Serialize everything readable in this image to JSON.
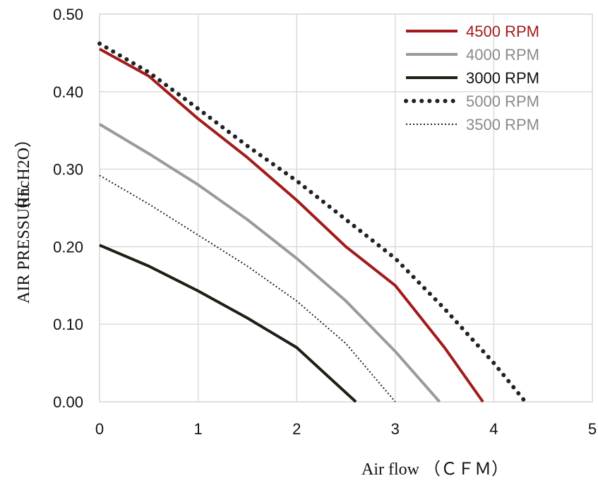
{
  "chart_data": {
    "type": "line",
    "xlabel": "Air flow  （ＣＦＭ）",
    "ylabel_main": "AIR PRESSURE",
    "ylabel_unit": "（IncH2O）",
    "xlim": [
      0,
      5
    ],
    "ylim": [
      0,
      0.5
    ],
    "x_ticks": [
      "0",
      "1",
      "2",
      "3",
      "4",
      "5"
    ],
    "y_ticks": [
      "0.00",
      "0.10",
      "0.20",
      "0.30",
      "0.40",
      "0.50"
    ],
    "grid": true,
    "legend_position": "top-right",
    "series": [
      {
        "name": "4500 RPM",
        "color": "#a31a1a",
        "style": "solid-thick",
        "points": [
          [
            0,
            0.455
          ],
          [
            0.5,
            0.42
          ],
          [
            1,
            0.365
          ],
          [
            1.5,
            0.315
          ],
          [
            2,
            0.26
          ],
          [
            2.5,
            0.2
          ],
          [
            3,
            0.15
          ],
          [
            3.5,
            0.07
          ],
          [
            3.89,
            0.0
          ]
        ]
      },
      {
        "name": "4000 RPM",
        "color": "#9a9a9a",
        "style": "solid-thick",
        "points": [
          [
            0,
            0.358
          ],
          [
            0.5,
            0.32
          ],
          [
            1,
            0.28
          ],
          [
            1.5,
            0.235
          ],
          [
            2,
            0.185
          ],
          [
            2.5,
            0.13
          ],
          [
            3,
            0.065
          ],
          [
            3.45,
            0.0
          ]
        ]
      },
      {
        "name": "3000 RPM",
        "color": "#1b1f14",
        "style": "solid-thick",
        "points": [
          [
            0,
            0.202
          ],
          [
            0.5,
            0.175
          ],
          [
            1,
            0.143
          ],
          [
            1.5,
            0.108
          ],
          [
            2,
            0.07
          ],
          [
            2.3,
            0.035
          ],
          [
            2.6,
            0.0
          ]
        ]
      },
      {
        "name": "5000 RPM",
        "color": "#222222",
        "style": "dotted-thick",
        "points": [
          [
            0,
            0.462
          ],
          [
            0.5,
            0.425
          ],
          [
            1,
            0.378
          ],
          [
            1.5,
            0.33
          ],
          [
            2,
            0.285
          ],
          [
            2.5,
            0.235
          ],
          [
            3,
            0.185
          ],
          [
            3.5,
            0.12
          ],
          [
            4,
            0.05
          ],
          [
            4.32,
            0.0
          ]
        ]
      },
      {
        "name": "3500 RPM",
        "color": "#222222",
        "style": "dotted-thin",
        "points": [
          [
            0,
            0.292
          ],
          [
            0.5,
            0.255
          ],
          [
            1,
            0.215
          ],
          [
            1.5,
            0.175
          ],
          [
            2,
            0.13
          ],
          [
            2.5,
            0.075
          ],
          [
            3,
            0.0
          ]
        ]
      }
    ]
  }
}
